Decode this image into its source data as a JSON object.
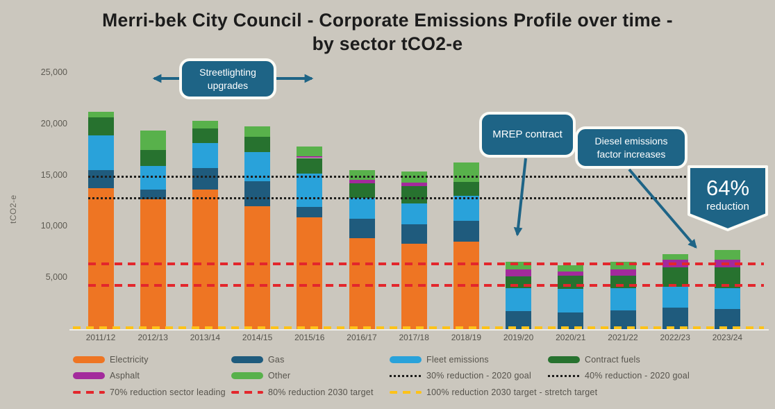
{
  "chart_data": {
    "type": "bar",
    "stacked": true,
    "title_line1": "Merri-bek City Council - Corporate Emissions Profile over time -",
    "title_line2": "by sector tCO2-e",
    "ylabel": "tCO2-e",
    "ylim": [
      0,
      25000
    ],
    "yticks": [
      {
        "value": 5000,
        "label": "5,000"
      },
      {
        "value": 10000,
        "label": "10,000"
      },
      {
        "value": 15000,
        "label": "15,000"
      },
      {
        "value": 20000,
        "label": "20,000"
      },
      {
        "value": 25000,
        "label": "25,000"
      }
    ],
    "categories": [
      "2011/12",
      "2012/13",
      "2013/14",
      "2014/15",
      "2015/16",
      "2016/17",
      "2017/18",
      "2018/19",
      "2019/20",
      "2020/21",
      "2021/22",
      "2022/23",
      "2023/24"
    ],
    "series": [
      {
        "name": "Electricity",
        "color": "#ee7523",
        "values": [
          13750,
          12700,
          13600,
          12000,
          10900,
          8900,
          8350,
          8550,
          0,
          0,
          0,
          0,
          0
        ]
      },
      {
        "name": "Gas",
        "color": "#1f5b7d",
        "values": [
          1750,
          900,
          2100,
          2400,
          1000,
          1900,
          1900,
          2000,
          1750,
          1650,
          1850,
          2100,
          1950
        ]
      },
      {
        "name": "Fleet emissions",
        "color": "#29a2da",
        "values": [
          3400,
          2350,
          2450,
          2850,
          3250,
          2000,
          2000,
          2450,
          2250,
          2250,
          2150,
          2050,
          2050
        ]
      },
      {
        "name": "Contract fuels",
        "color": "#27722f",
        "values": [
          1750,
          1500,
          1450,
          1550,
          1550,
          1450,
          1700,
          1350,
          1150,
          1300,
          1200,
          1900,
          2000
        ]
      },
      {
        "name": "Asphalt",
        "color": "#a32a9c",
        "values": [
          0,
          0,
          0,
          0,
          200,
          300,
          350,
          0,
          650,
          400,
          600,
          700,
          800
        ]
      },
      {
        "name": "Other",
        "color": "#58b14b",
        "values": [
          550,
          1950,
          700,
          950,
          900,
          950,
          1050,
          1900,
          800,
          600,
          750,
          550,
          900
        ]
      }
    ],
    "target_lines": [
      {
        "label": "30% reduction - 2020 goal",
        "value": 14900,
        "style": "dotted",
        "color": "#1d1d1b"
      },
      {
        "label": "40% reduction - 2020 goal",
        "value": 12800,
        "style": "dotted",
        "color": "#1d1d1b"
      },
      {
        "label": "70% reduction sector leading",
        "value": 6400,
        "style": "dashed",
        "color": "#e3262c"
      },
      {
        "label": "80% reduction 2030 target",
        "value": 4300,
        "style": "dashed",
        "color": "#e3262c"
      },
      {
        "label": "100% reduction 2030 target - stretch target",
        "value": 0,
        "style": "dashed",
        "color": "#fdc218"
      }
    ],
    "annotations": {
      "streetlighting": "Streetlighting upgrades",
      "mrep": "MREP contract",
      "diesel": "Diesel emissions factor increases",
      "badge_value": "64%",
      "badge_label": "reduction"
    },
    "legend_position": "bottom",
    "grid": false
  },
  "legend": {
    "items": [
      {
        "type": "bar",
        "color": "#ee7523",
        "label": "Electricity"
      },
      {
        "type": "bar",
        "color": "#1f5b7d",
        "label": "Gas"
      },
      {
        "type": "bar",
        "color": "#29a2da",
        "label": "Fleet emissions"
      },
      {
        "type": "bar",
        "color": "#27722f",
        "label": "Contract fuels"
      },
      {
        "type": "bar",
        "color": "#a32a9c",
        "label": "Asphalt"
      },
      {
        "type": "bar",
        "color": "#58b14b",
        "label": "Other"
      },
      {
        "type": "dotted",
        "color": "#1d1d1b",
        "label": "30% reduction - 2020 goal"
      },
      {
        "type": "dotted",
        "color": "#1d1d1b",
        "label": "40% reduction - 2020 goal"
      },
      {
        "type": "dashed",
        "color": "#e3262c",
        "label": "70% reduction sector leading"
      },
      {
        "type": "dashed",
        "color": "#e3262c",
        "label": "80% reduction 2030 target"
      },
      {
        "type": "dashed",
        "color": "#fdc218",
        "label": "100% reduction 2030 target - stretch target"
      }
    ]
  },
  "colors": {
    "background": "#cbc7be",
    "annotation_teal": "#1e6486",
    "annotation_border": "#fbfbf6",
    "axis_text": "#5d5a52",
    "legend_text": "#56534c",
    "title_text": "#1c1c1c"
  }
}
